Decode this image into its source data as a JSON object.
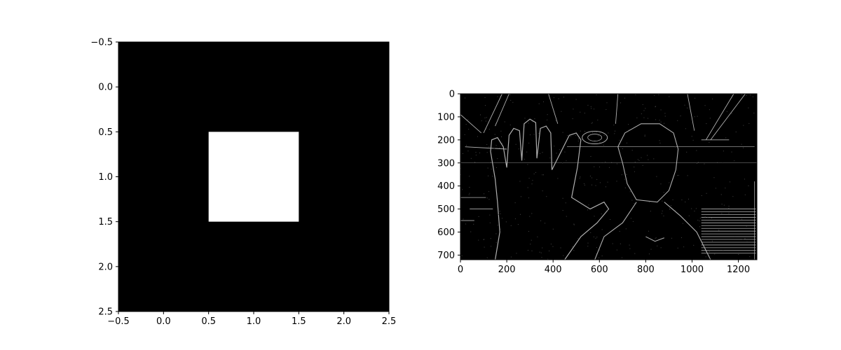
{
  "chart_data": [
    {
      "type": "heatmap",
      "title": "",
      "xlabel": "",
      "ylabel": "",
      "xlim": [
        -0.5,
        2.5
      ],
      "ylim": [
        2.5,
        -0.5
      ],
      "y_inverted": true,
      "colormap": "gray",
      "x_ticks": [
        "−0.5",
        "0.0",
        "0.5",
        "1.0",
        "1.5",
        "2.0",
        "2.5"
      ],
      "x_tick_values": [
        -0.5,
        0.0,
        0.5,
        1.0,
        1.5,
        2.0,
        2.5
      ],
      "y_ticks": [
        "−0.5",
        "0.0",
        "0.5",
        "1.0",
        "1.5",
        "2.0",
        "2.5"
      ],
      "y_tick_values": [
        -0.5,
        0.0,
        0.5,
        1.0,
        1.5,
        2.0,
        2.5
      ],
      "matrix": [
        [
          0,
          0,
          0
        ],
        [
          0,
          1,
          0
        ],
        [
          0,
          0,
          0
        ]
      ],
      "grid": false
    },
    {
      "type": "heatmap",
      "title": "",
      "xlabel": "",
      "ylabel": "",
      "xlim": [
        0,
        1280
      ],
      "ylim": [
        720,
        0
      ],
      "y_inverted": true,
      "content": "edge-filtered photo",
      "x_ticks": [
        "0",
        "200",
        "400",
        "600",
        "800",
        "1000",
        "1200"
      ],
      "x_tick_values": [
        0,
        200,
        400,
        600,
        800,
        1000,
        1200
      ],
      "y_ticks": [
        "0",
        "100",
        "200",
        "300",
        "400",
        "500",
        "600",
        "700"
      ],
      "y_tick_values": [
        0,
        100,
        200,
        300,
        400,
        500,
        600,
        700
      ],
      "grid": false
    }
  ],
  "colors": {
    "background": "#000000",
    "kernel_high": "#ffffff",
    "edge_stroke": "#cfcfcf",
    "axis": "#000000"
  }
}
